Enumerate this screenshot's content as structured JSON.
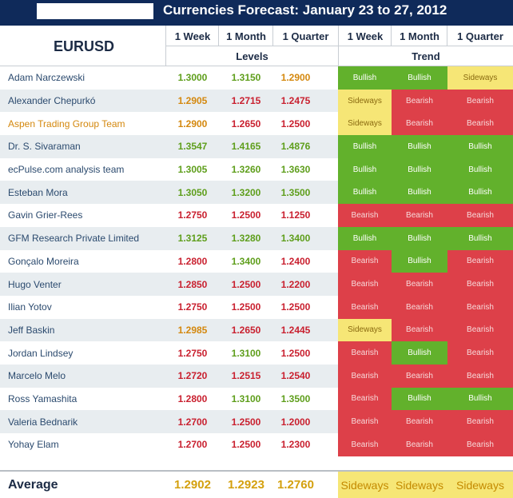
{
  "title": "Currencies Forecast: January 23 to 27, 2012",
  "pair": "EURUSD",
  "periods": [
    "1 Week",
    "1 Month",
    "1 Quarter"
  ],
  "groups": {
    "levels": "Levels",
    "trend": "Trend"
  },
  "colors": {
    "header_bg": "#0f2a5a",
    "bullish": "#62b12c",
    "bearish": "#dd4049",
    "sideways": "#f6e676",
    "text_orange": "#d4880e",
    "text_green": "#5e9e1b",
    "text_red": "#c9202f"
  },
  "rows": [
    {
      "name": "Adam Narczewski",
      "levels": [
        "1.3000",
        "1.3150",
        "1.2900"
      ],
      "trend": [
        "Bullish",
        "Bullish",
        "Sideways"
      ]
    },
    {
      "name": "Alexander Chepurkó",
      "levels": [
        "1.2905",
        "1.2715",
        "1.2475"
      ],
      "trend": [
        "Sideways",
        "Bearish",
        "Bearish"
      ]
    },
    {
      "name": "Aspen Trading Group Team",
      "levels": [
        "1.2900",
        "1.2650",
        "1.2500"
      ],
      "trend": [
        "Sideways",
        "Bearish",
        "Bearish"
      ]
    },
    {
      "name": "Dr. S. Sivaraman",
      "levels": [
        "1.3547",
        "1.4165",
        "1.4876"
      ],
      "trend": [
        "Bullish",
        "Bullish",
        "Bullish"
      ]
    },
    {
      "name": "ecPulse.com analysis team",
      "levels": [
        "1.3005",
        "1.3260",
        "1.3630"
      ],
      "trend": [
        "Bullish",
        "Bullish",
        "Bullish"
      ]
    },
    {
      "name": "Esteban Mora",
      "levels": [
        "1.3050",
        "1.3200",
        "1.3500"
      ],
      "trend": [
        "Bullish",
        "Bullish",
        "Bullish"
      ]
    },
    {
      "name": "Gavin Grier-Rees",
      "levels": [
        "1.2750",
        "1.2500",
        "1.1250"
      ],
      "trend": [
        "Bearish",
        "Bearish",
        "Bearish"
      ]
    },
    {
      "name": "GFM Research Private Limited",
      "levels": [
        "1.3125",
        "1.3280",
        "1.3400"
      ],
      "trend": [
        "Bullish",
        "Bullish",
        "Bullish"
      ]
    },
    {
      "name": "Gonçalo Moreira",
      "levels": [
        "1.2800",
        "1.3400",
        "1.2400"
      ],
      "trend": [
        "Bearish",
        "Bullish",
        "Bearish"
      ]
    },
    {
      "name": "Hugo Venter",
      "levels": [
        "1.2850",
        "1.2500",
        "1.2200"
      ],
      "trend": [
        "Bearish",
        "Bearish",
        "Bearish"
      ]
    },
    {
      "name": "Ilian Yotov",
      "levels": [
        "1.2750",
        "1.2500",
        "1.2500"
      ],
      "trend": [
        "Bearish",
        "Bearish",
        "Bearish"
      ]
    },
    {
      "name": "Jeff Baskin",
      "levels": [
        "1.2985",
        "1.2650",
        "1.2445"
      ],
      "trend": [
        "Sideways",
        "Bearish",
        "Bearish"
      ]
    },
    {
      "name": "Jordan Lindsey",
      "levels": [
        "1.2750",
        "1.3100",
        "1.2500"
      ],
      "trend": [
        "Bearish",
        "Bullish",
        "Bearish"
      ]
    },
    {
      "name": "Marcelo Melo",
      "levels": [
        "1.2720",
        "1.2515",
        "1.2540"
      ],
      "trend": [
        "Bearish",
        "Bearish",
        "Bearish"
      ]
    },
    {
      "name": "Ross Yamashita",
      "levels": [
        "1.2800",
        "1.3100",
        "1.3500"
      ],
      "trend": [
        "Bearish",
        "Bullish",
        "Bullish"
      ]
    },
    {
      "name": "Valeria Bednarik",
      "levels": [
        "1.2700",
        "1.2500",
        "1.2000"
      ],
      "trend": [
        "Bearish",
        "Bearish",
        "Bearish"
      ]
    },
    {
      "name": "Yohay Elam",
      "levels": [
        "1.2700",
        "1.2500",
        "1.2300"
      ],
      "trend": [
        "Bearish",
        "Bearish",
        "Bearish"
      ]
    }
  ],
  "average": {
    "label": "Average",
    "levels": [
      "1.2902",
      "1.2923",
      "1.2760"
    ],
    "trend": [
      "Sideways",
      "Sideways",
      "Sideways"
    ]
  }
}
